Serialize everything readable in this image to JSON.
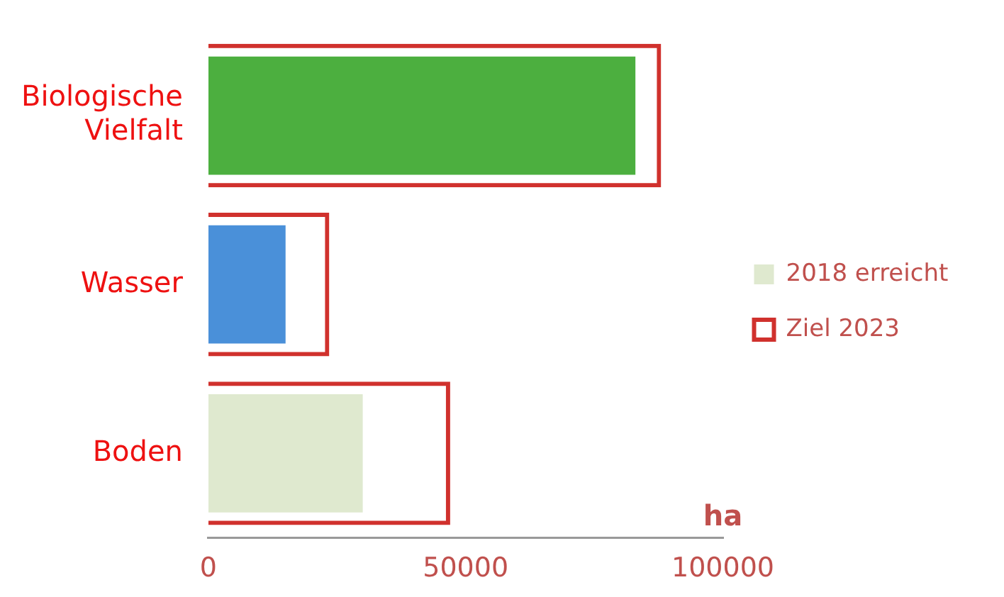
{
  "chart_data": {
    "type": "bar",
    "orientation": "horizontal",
    "xlabel": "ha",
    "categories": [
      "Biologische Vielfalt",
      "Wasser",
      "Boden"
    ],
    "series": [
      {
        "name": "2018 erreicht",
        "color": "#dfe9cf",
        "colors": [
          "#4caf3f",
          "#4a90d9",
          "#dfe9cf"
        ],
        "values": [
          83000,
          15000,
          30000
        ]
      },
      {
        "name": "Ziel 2023",
        "color": "#d0312d",
        "values": [
          88000,
          23500,
          47000
        ]
      }
    ],
    "xlim": [
      0,
      100000
    ],
    "xticks": [
      0,
      50000,
      100000
    ],
    "grid": false,
    "legend": "right"
  }
}
